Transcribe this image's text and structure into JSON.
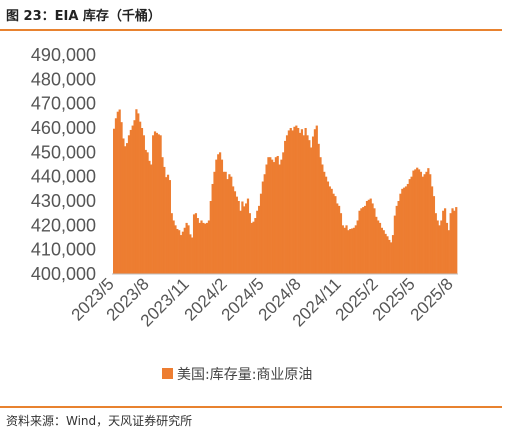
{
  "header": {
    "title": "图 23：EIA 库存（千桶）"
  },
  "footer": {
    "source": "资料来源：Wind，天风证券研究所"
  },
  "colors": {
    "accent": "#e8822f",
    "bar": "#ed7d31"
  },
  "chart_data": {
    "type": "bar",
    "title": "",
    "xlabel": "",
    "ylabel": "",
    "ylim": [
      400000,
      490000
    ],
    "yticks": [
      400000,
      410000,
      420000,
      430000,
      440000,
      450000,
      460000,
      470000,
      480000,
      490000
    ],
    "ytick_labels": [
      "400,000",
      "410,000",
      "420,000",
      "430,000",
      "440,000",
      "450,000",
      "460,000",
      "470,000",
      "480,000",
      "490,000"
    ],
    "xtick_labels": [
      "2023/5",
      "2023/8",
      "2023/11",
      "2024/2",
      "2024/5",
      "2024/8",
      "2024/11",
      "2025/2",
      "2025/5",
      "2025/8"
    ],
    "legend": {
      "position": "bottom-center"
    },
    "series": [
      {
        "name": "美国:库存量:商业原油",
        "frequency": "weekly",
        "x_start": "2023/5",
        "values": [
          459700,
          464000,
          466700,
          467600,
          462400,
          455700,
          452500,
          453800,
          457000,
          459200,
          461000,
          463200,
          467700,
          466000,
          462600,
          460000,
          457000,
          451000,
          450000,
          446500,
          445000,
          457000,
          458600,
          458000,
          457400,
          457000,
          448000,
          444000,
          439800,
          440800,
          438600,
          425000,
          422000,
          420000,
          418500,
          418000,
          416000,
          417400,
          419000,
          421000,
          420000,
          416300,
          415000,
          424500,
          425000,
          423000,
          421000,
          422000,
          421000,
          420700,
          421000,
          422000,
          430000,
          437000,
          442000,
          447000,
          449200,
          450000,
          447000,
          442000,
          442000,
          439000,
          441000,
          440000,
          436000,
          434000,
          431800,
          430000,
          426000,
          429800,
          427800,
          429000,
          431000,
          425000,
          421000,
          421500,
          423000,
          426000,
          428000,
          433000,
          438000,
          441000,
          445000,
          448000,
          448000,
          447000,
          446000,
          448000,
          448500,
          445000,
          447000,
          450000,
          454700,
          457000,
          459000,
          460000,
          459000,
          460500,
          461000,
          460000,
          458000,
          459500,
          457000,
          460000,
          457000,
          455000,
          452000,
          456500,
          459500,
          461000,
          453500,
          448000,
          445000,
          442000,
          440000,
          438000,
          436000,
          435000,
          433000,
          432000,
          429000,
          428000,
          425000,
          420000,
          419000,
          420000,
          418000,
          418500,
          418700,
          419000,
          420000,
          422000,
          426000,
          427000,
          427500,
          428000,
          430000,
          430500,
          431000,
          429000,
          427000,
          423500,
          422000,
          421000,
          419000,
          418000,
          416500,
          415500,
          414000,
          413000,
          416000,
          424000,
          428000,
          430000,
          433000,
          435000,
          435500,
          436000,
          437000,
          439000,
          440000,
          442500,
          443000,
          443700,
          443000,
          442000,
          440000,
          441000,
          442000,
          443500,
          441000,
          436000,
          432000,
          425000,
          422000,
          420000,
          422000,
          426000,
          427000,
          421000,
          418000,
          425000,
          427000,
          426000,
          427500
        ]
      }
    ]
  }
}
